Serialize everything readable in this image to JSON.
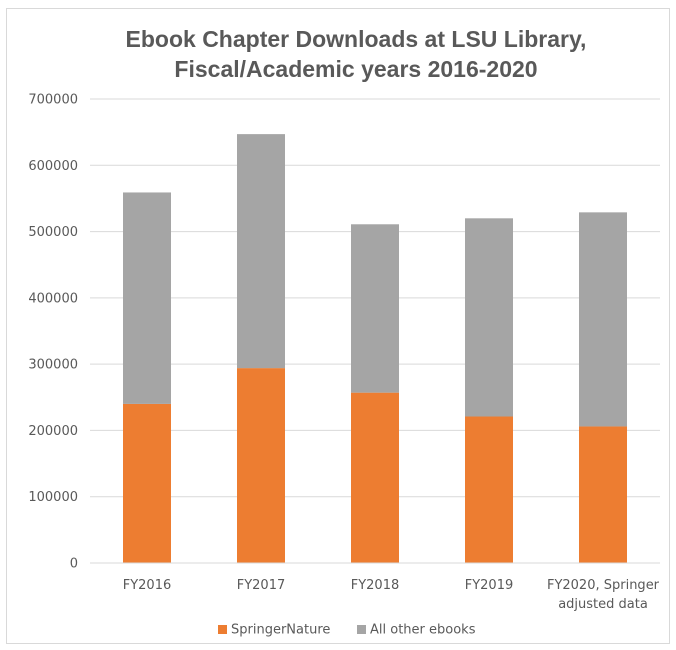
{
  "chart_data": {
    "type": "bar",
    "stacked": true,
    "title": [
      "Ebook Chapter Downloads at LSU Library,",
      "Fiscal/Academic years 2016-2020"
    ],
    "categories": [
      [
        "FY2016"
      ],
      [
        "FY2017"
      ],
      [
        "FY2018"
      ],
      [
        "FY2019"
      ],
      [
        "FY2020, Springer",
        "adjusted data"
      ]
    ],
    "series": [
      {
        "name": "SpringerNature",
        "color": "#ed7d31",
        "values": [
          240000,
          294000,
          257000,
          221000,
          206000
        ]
      },
      {
        "name": "All other ebooks",
        "color": "#a5a5a5",
        "values": [
          319000,
          353000,
          254000,
          299000,
          323000
        ]
      }
    ],
    "ylim": [
      0,
      700000
    ],
    "yticks": [
      0,
      100000,
      200000,
      300000,
      400000,
      500000,
      600000,
      700000
    ],
    "grid": true,
    "legend_position": "bottom"
  }
}
